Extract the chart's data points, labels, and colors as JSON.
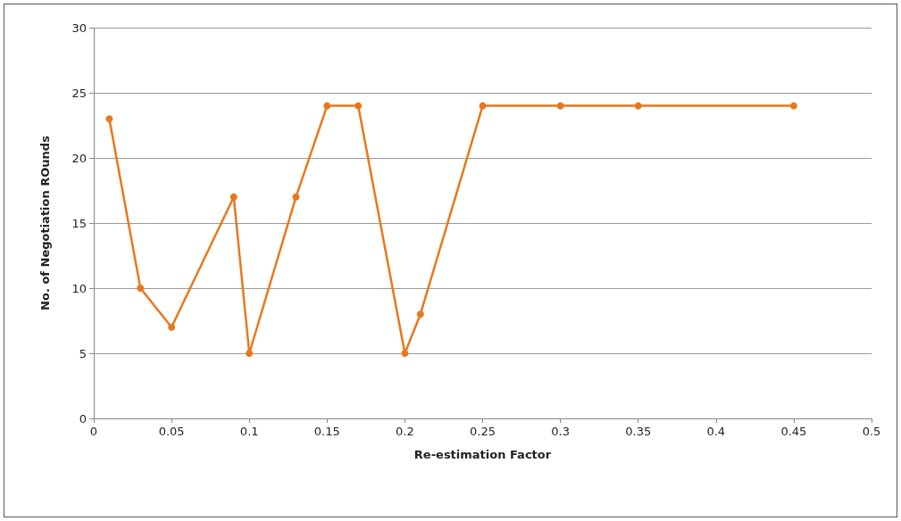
{
  "chart_data": {
    "type": "line",
    "xlabel": "Re-estimation Factor",
    "ylabel": "No. of Negotiation ROunds",
    "x": [
      0.01,
      0.03,
      0.05,
      0.09,
      0.1,
      0.13,
      0.15,
      0.17,
      0.2,
      0.21,
      0.25,
      0.3,
      0.35,
      0.45
    ],
    "series": [
      {
        "color": "#e8781e",
        "values": [
          23,
          10,
          7,
          17,
          5,
          17,
          24,
          24,
          5,
          8,
          24,
          24,
          24,
          24
        ]
      }
    ],
    "xlim": [
      0,
      0.5
    ],
    "xticks": [
      0,
      0.05,
      0.1,
      0.15,
      0.2,
      0.25,
      0.3,
      0.35,
      0.4,
      0.45,
      0.5
    ],
    "ylim": [
      0,
      30
    ],
    "yticks": [
      0,
      5,
      10,
      15,
      20,
      25,
      30
    ],
    "grid": "y",
    "marker": "circle",
    "line_style": "solid"
  }
}
